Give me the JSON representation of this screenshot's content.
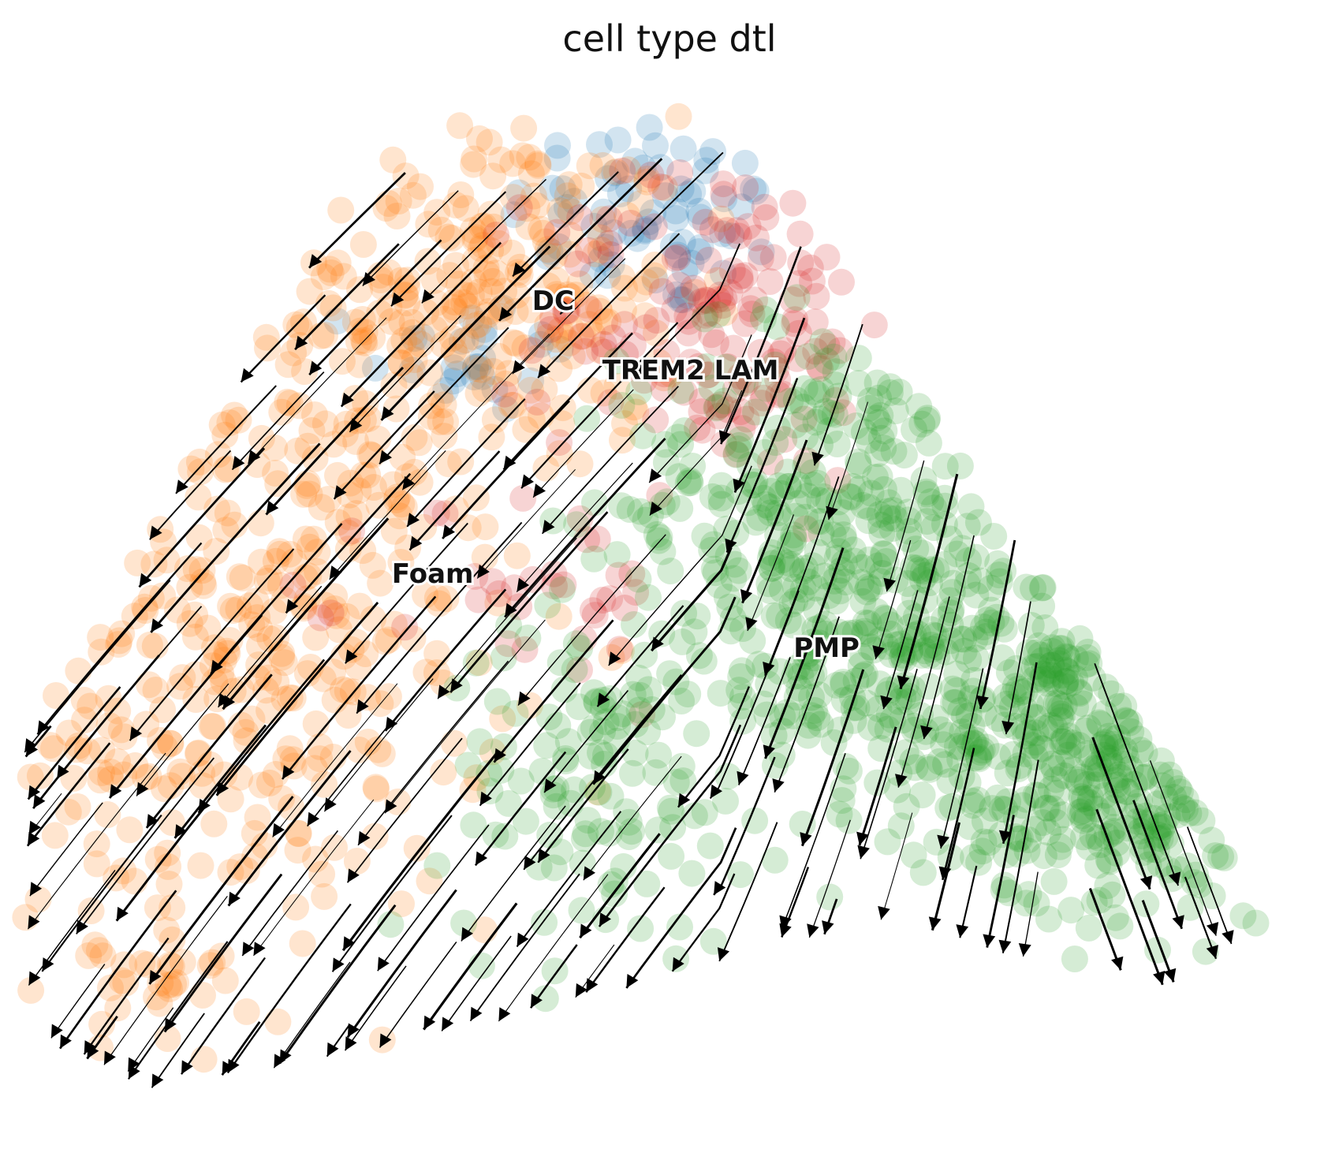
{
  "chart_data": {
    "type": "scatter",
    "title": "cell type dtl",
    "xlabel": "",
    "ylabel": "",
    "grid": false,
    "overlay": "velocity streamlines",
    "xlim": [
      0,
      1
    ],
    "ylim": [
      0,
      1
    ],
    "series": [
      {
        "name": "DC",
        "color": "#1f77b4",
        "clusters": [
          {
            "cx": 0.5,
            "cy": 0.86,
            "sx": 0.06,
            "sy": 0.05,
            "n": 70
          },
          {
            "cx": 0.35,
            "cy": 0.72,
            "sx": 0.04,
            "sy": 0.03,
            "n": 25
          }
        ]
      },
      {
        "name": "Foam",
        "color": "#ff7f0e",
        "clusters": [
          {
            "cx": 0.36,
            "cy": 0.78,
            "sx": 0.08,
            "sy": 0.09,
            "n": 260
          },
          {
            "cx": 0.2,
            "cy": 0.45,
            "sx": 0.09,
            "sy": 0.14,
            "n": 320
          },
          {
            "cx": 0.1,
            "cy": 0.12,
            "sx": 0.04,
            "sy": 0.05,
            "n": 40
          },
          {
            "cx": 0.05,
            "cy": 0.3,
            "sx": 0.03,
            "sy": 0.06,
            "n": 30
          }
        ]
      },
      {
        "name": "TREM2 LAM",
        "color": "#d62728",
        "clusters": [
          {
            "cx": 0.55,
            "cy": 0.76,
            "sx": 0.07,
            "sy": 0.08,
            "n": 150
          },
          {
            "cx": 0.4,
            "cy": 0.48,
            "sx": 0.06,
            "sy": 0.06,
            "n": 35
          }
        ]
      },
      {
        "name": "PMP",
        "color": "#2ca02c",
        "clusters": [
          {
            "cx": 0.63,
            "cy": 0.57,
            "sx": 0.08,
            "sy": 0.09,
            "n": 320
          },
          {
            "cx": 0.75,
            "cy": 0.4,
            "sx": 0.1,
            "sy": 0.08,
            "n": 320
          },
          {
            "cx": 0.88,
            "cy": 0.3,
            "sx": 0.07,
            "sy": 0.07,
            "n": 220
          },
          {
            "cx": 0.45,
            "cy": 0.3,
            "sx": 0.06,
            "sy": 0.08,
            "n": 120
          }
        ]
      }
    ],
    "labels": [
      {
        "text": "DC",
        "x": 0.4,
        "y": 0.765
      },
      {
        "text": "TREM2 LAM",
        "x": 0.455,
        "y": 0.697
      },
      {
        "text": "Foam",
        "x": 0.29,
        "y": 0.497
      },
      {
        "text": "PMP",
        "x": 0.605,
        "y": 0.424
      }
    ]
  }
}
